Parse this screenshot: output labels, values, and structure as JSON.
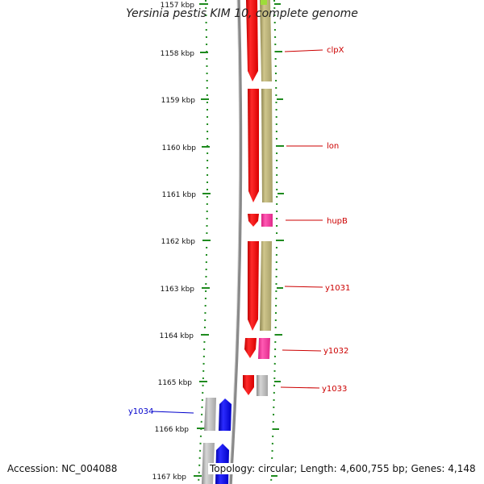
{
  "title": "Yersinia pestis KIM 10, complete genome",
  "footer": {
    "accession": "Accession: NC_004088",
    "summary": "Topology: circular; Length: 4,600,755 bp; Genes: 4,148"
  },
  "colors": {
    "forward_cds": "#ff0000",
    "cog_khaki": "#bdb47a",
    "cog_pink": "#ff3fa3",
    "cog_gray": "#b8b8b8",
    "blue_cds": "#0000ee",
    "tick_green": "#1f8b1f",
    "label_red": "#cc0000",
    "label_blue": "#0000cc",
    "backbone": "#888888"
  },
  "map": {
    "kbp_labels": [
      "1157 kbp",
      "1158 kbp",
      "1159 kbp",
      "1160 kbp",
      "1161 kbp",
      "1162 kbp",
      "1163 kbp",
      "1164 kbp",
      "1165 kbp",
      "1166 kbp",
      "1167 kbp"
    ],
    "genes": [
      {
        "name": "clpX",
        "strand": "+",
        "color_class": "khaki"
      },
      {
        "name": "lon",
        "strand": "+",
        "color_class": "khaki"
      },
      {
        "name": "hupB",
        "strand": "+",
        "color_class": "pink"
      },
      {
        "name": "y1031",
        "strand": "+",
        "color_class": "khaki"
      },
      {
        "name": "y1032",
        "strand": "+",
        "color_class": "pink"
      },
      {
        "name": "y1033",
        "strand": "+",
        "color_class": "gray"
      },
      {
        "name": "y1034",
        "strand": "-",
        "color_class": "gray"
      }
    ]
  }
}
